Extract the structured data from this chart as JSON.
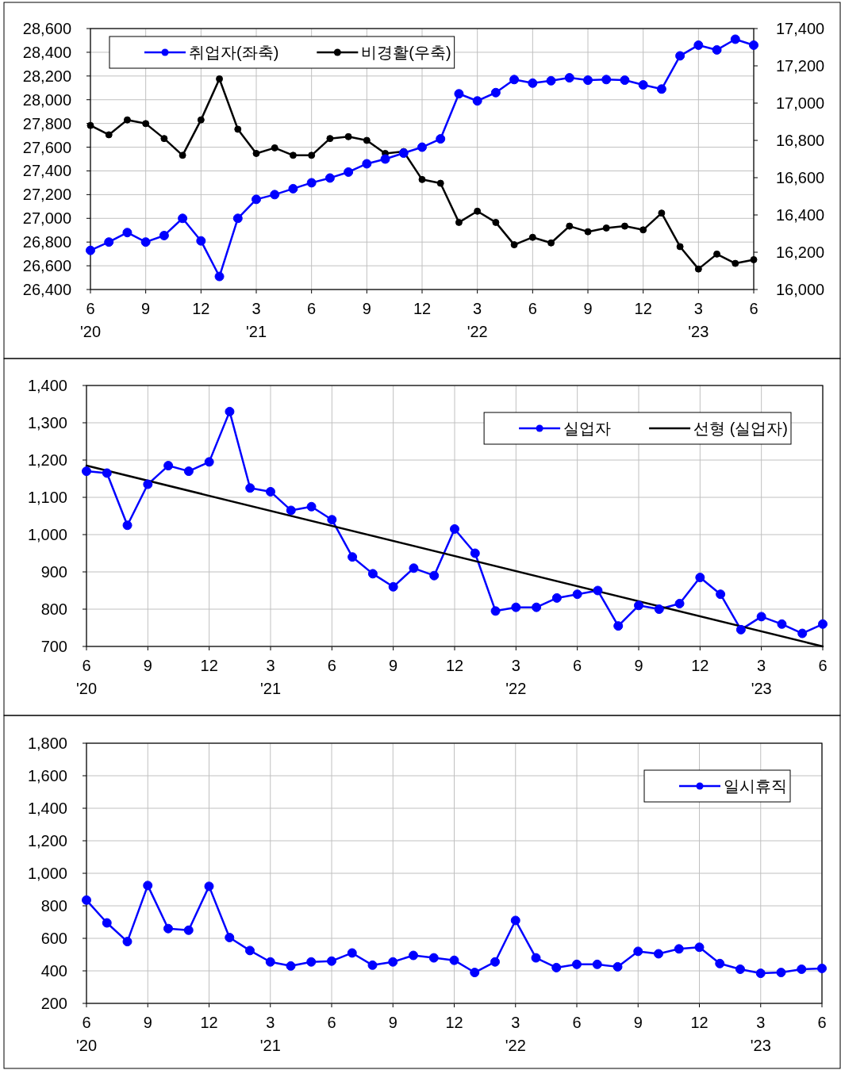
{
  "chart_data": [
    {
      "type": "line",
      "x": [
        "2020-06",
        "2020-07",
        "2020-08",
        "2020-09",
        "2020-10",
        "2020-11",
        "2020-12",
        "2021-01",
        "2021-02",
        "2021-03",
        "2021-04",
        "2021-05",
        "2021-06",
        "2021-07",
        "2021-08",
        "2021-09",
        "2021-10",
        "2021-11",
        "2021-12",
        "2022-01",
        "2022-02",
        "2022-03",
        "2022-04",
        "2022-05",
        "2022-06",
        "2022-07",
        "2022-08",
        "2022-09",
        "2022-10",
        "2022-11",
        "2022-12",
        "2023-01",
        "2023-02",
        "2023-03",
        "2023-04",
        "2023-05",
        "2023-06"
      ],
      "xlim": [
        "2020-06",
        "2023-06"
      ],
      "xticks": [
        {
          "value": "2020-06",
          "label": "6\n'20"
        },
        {
          "value": "2020-09",
          "label": "9"
        },
        {
          "value": "2020-12",
          "label": "12"
        },
        {
          "value": "2021-03",
          "label": "3\n'21"
        },
        {
          "value": "2021-06",
          "label": "6"
        },
        {
          "value": "2021-09",
          "label": "9"
        },
        {
          "value": "2021-12",
          "label": "12"
        },
        {
          "value": "2022-03",
          "label": "3\n'22"
        },
        {
          "value": "2022-06",
          "label": "6"
        },
        {
          "value": "2022-09",
          "label": "9"
        },
        {
          "value": "2022-12",
          "label": "12"
        },
        {
          "value": "2023-03",
          "label": "3\n'23"
        },
        {
          "value": "2023-06",
          "label": "6"
        }
      ],
      "ylim": [
        26400,
        28600
      ],
      "yticks": [
        {
          "value": 26400,
          "label": "26,400"
        },
        {
          "value": 26600,
          "label": "26,600"
        },
        {
          "value": 26800,
          "label": "26,800"
        },
        {
          "value": 27000,
          "label": "27,000"
        },
        {
          "value": 27200,
          "label": "27,200"
        },
        {
          "value": 27400,
          "label": "27,400"
        },
        {
          "value": 27600,
          "label": "27,600"
        },
        {
          "value": 27800,
          "label": "27,800"
        },
        {
          "value": 28000,
          "label": "28,000"
        },
        {
          "value": 28200,
          "label": "28,200"
        },
        {
          "value": 28400,
          "label": "28,400"
        },
        {
          "value": 28600,
          "label": "28,600"
        }
      ],
      "y2lim": [
        16000,
        17400
      ],
      "y2ticks": [
        {
          "value": 16000,
          "label": "16,000"
        },
        {
          "value": 16200,
          "label": "16,200"
        },
        {
          "value": 16400,
          "label": "16,400"
        },
        {
          "value": 16600,
          "label": "16,600"
        },
        {
          "value": 16800,
          "label": "16,800"
        },
        {
          "value": 17000,
          "label": "17,000"
        },
        {
          "value": 17200,
          "label": "17,200"
        },
        {
          "value": 17400,
          "label": "17,400"
        }
      ],
      "grid": true,
      "legend": "top left",
      "marker": "circle",
      "series": [
        {
          "name": "취업자(좌축)",
          "color": "#0000ff",
          "values": [
            26730,
            26800,
            26880,
            26800,
            26855,
            27000,
            26810,
            26510,
            27000,
            27160,
            27200,
            27250,
            27300,
            27340,
            27390,
            27460,
            27500,
            27550,
            27600,
            27670,
            28050,
            27990,
            28060,
            28170,
            28140,
            28160,
            28185,
            28165,
            28170,
            28165,
            28125,
            28090,
            28370,
            28460,
            28420,
            28510,
            28460
          ]
        },
        {
          "name": "비경활(우축)",
          "color": "#000000",
          "axis": "y2",
          "values": [
            16880,
            16830,
            16910,
            16890,
            16810,
            16720,
            16910,
            17130,
            16860,
            16730,
            16760,
            16720,
            16720,
            16810,
            16820,
            16800,
            16730,
            16740,
            16590,
            16570,
            16360,
            16420,
            16360,
            16240,
            16280,
            16250,
            16340,
            16310,
            16330,
            16340,
            16320,
            16410,
            16230,
            16110,
            16190,
            16140,
            16160
          ]
        }
      ]
    },
    {
      "type": "line",
      "x": [
        "2020-06",
        "2020-07",
        "2020-08",
        "2020-09",
        "2020-10",
        "2020-11",
        "2020-12",
        "2021-01",
        "2021-02",
        "2021-03",
        "2021-04",
        "2021-05",
        "2021-06",
        "2021-07",
        "2021-08",
        "2021-09",
        "2021-10",
        "2021-11",
        "2021-12",
        "2022-01",
        "2022-02",
        "2022-03",
        "2022-04",
        "2022-05",
        "2022-06",
        "2022-07",
        "2022-08",
        "2022-09",
        "2022-10",
        "2022-11",
        "2022-12",
        "2023-01",
        "2023-02",
        "2023-03",
        "2023-04",
        "2023-05",
        "2023-06"
      ],
      "xlim": [
        "2020-06",
        "2023-06"
      ],
      "xticks": [
        {
          "value": "2020-06",
          "label": "6\n'20"
        },
        {
          "value": "2020-09",
          "label": "9"
        },
        {
          "value": "2020-12",
          "label": "12"
        },
        {
          "value": "2021-03",
          "label": "3\n'21"
        },
        {
          "value": "2021-06",
          "label": "6"
        },
        {
          "value": "2021-09",
          "label": "9"
        },
        {
          "value": "2021-12",
          "label": "12"
        },
        {
          "value": "2022-03",
          "label": "3\n'22"
        },
        {
          "value": "2022-06",
          "label": "6"
        },
        {
          "value": "2022-09",
          "label": "9"
        },
        {
          "value": "2022-12",
          "label": "12"
        },
        {
          "value": "2023-03",
          "label": "3\n'23"
        },
        {
          "value": "2023-06",
          "label": "6"
        }
      ],
      "ylim": [
        700,
        1400
      ],
      "yticks": [
        700,
        800,
        900,
        {
          "value": 1000,
          "label": "1,000"
        },
        {
          "value": 1100,
          "label": "1,100"
        },
        {
          "value": 1200,
          "label": "1,200"
        },
        {
          "value": 1300,
          "label": "1,300"
        },
        {
          "value": 1400,
          "label": "1,400"
        }
      ],
      "grid": true,
      "legend": "top right",
      "marker": "circle",
      "series": [
        {
          "name": "실업자",
          "color": "#0000ff",
          "values": [
            1170,
            1165,
            1025,
            1135,
            1185,
            1170,
            1195,
            1330,
            1125,
            1115,
            1065,
            1075,
            1040,
            940,
            895,
            860,
            910,
            890,
            1015,
            950,
            795,
            805,
            805,
            830,
            840,
            850,
            755,
            810,
            800,
            815,
            885,
            840,
            745,
            780,
            760,
            735,
            760
          ]
        },
        {
          "name": "선형 (실업자)",
          "color": "#000000",
          "marker": "none",
          "x": [
            "2020-06",
            "2023-06"
          ],
          "values": [
            1185,
            700
          ]
        }
      ]
    },
    {
      "type": "line",
      "x": [
        "2020-06",
        "2020-07",
        "2020-08",
        "2020-09",
        "2020-10",
        "2020-11",
        "2020-12",
        "2021-01",
        "2021-02",
        "2021-03",
        "2021-04",
        "2021-05",
        "2021-06",
        "2021-07",
        "2021-08",
        "2021-09",
        "2021-10",
        "2021-11",
        "2021-12",
        "2022-01",
        "2022-02",
        "2022-03",
        "2022-04",
        "2022-05",
        "2022-06",
        "2022-07",
        "2022-08",
        "2022-09",
        "2022-10",
        "2022-11",
        "2022-12",
        "2023-01",
        "2023-02",
        "2023-03",
        "2023-04",
        "2023-05",
        "2023-06"
      ],
      "xlim": [
        "2020-06",
        "2023-06"
      ],
      "xticks": [
        {
          "value": "2020-06",
          "label": "6\n'20"
        },
        {
          "value": "2020-09",
          "label": "9"
        },
        {
          "value": "2020-12",
          "label": "12"
        },
        {
          "value": "2021-03",
          "label": "3\n'21"
        },
        {
          "value": "2021-06",
          "label": "6"
        },
        {
          "value": "2021-09",
          "label": "9"
        },
        {
          "value": "2021-12",
          "label": "12"
        },
        {
          "value": "2022-03",
          "label": "3\n'22"
        },
        {
          "value": "2022-06",
          "label": "6"
        },
        {
          "value": "2022-09",
          "label": "9"
        },
        {
          "value": "2022-12",
          "label": "12"
        },
        {
          "value": "2023-03",
          "label": "3\n'23"
        },
        {
          "value": "2023-06",
          "label": "6"
        }
      ],
      "ylim": [
        200,
        1800
      ],
      "yticks": [
        200,
        400,
        600,
        800,
        {
          "value": 1000,
          "label": "1,000"
        },
        {
          "value": 1200,
          "label": "1,200"
        },
        {
          "value": 1400,
          "label": "1,400"
        },
        {
          "value": 1600,
          "label": "1,600"
        },
        {
          "value": 1800,
          "label": "1,800"
        }
      ],
      "grid": true,
      "legend": "top right",
      "marker": "circle",
      "series": [
        {
          "name": "일시휴직",
          "color": "#0000ff",
          "values": [
            835,
            695,
            580,
            925,
            660,
            650,
            920,
            605,
            525,
            455,
            430,
            455,
            460,
            510,
            435,
            455,
            495,
            480,
            465,
            390,
            455,
            710,
            480,
            420,
            440,
            440,
            425,
            520,
            505,
            535,
            545,
            445,
            410,
            385,
            390,
            410,
            415
          ]
        }
      ]
    }
  ]
}
